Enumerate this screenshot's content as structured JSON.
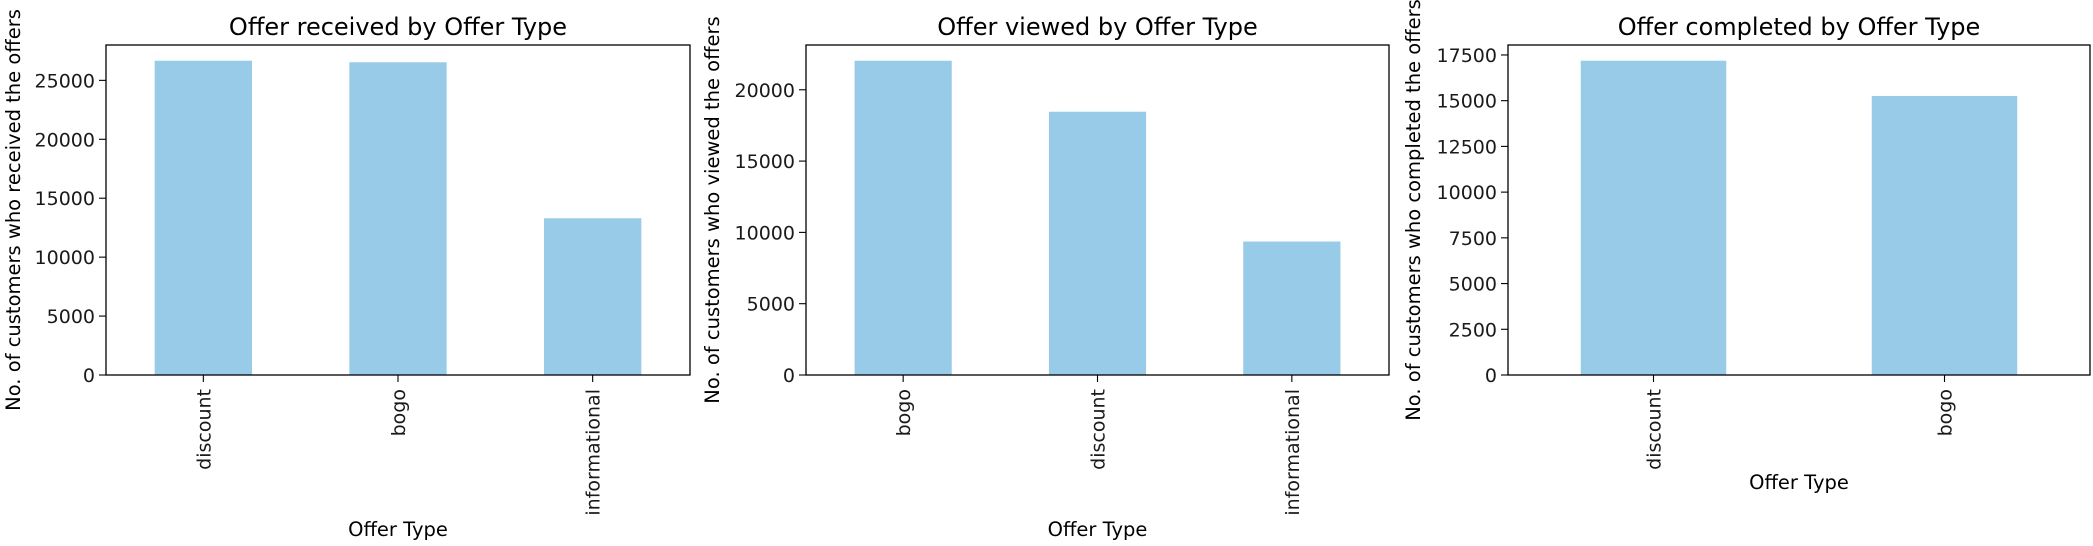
{
  "colors": {
    "bar": "#97cbe8"
  },
  "chart_data": [
    {
      "type": "bar",
      "title": "Offer received by Offer Type",
      "xlabel": "Offer Type",
      "ylabel": "No. of customers who received the offers",
      "categories": [
        "discount",
        "bogo",
        "informational"
      ],
      "values": [
        26664,
        26537,
        13300
      ],
      "ylim": [
        0,
        28000
      ],
      "yticks": [
        0,
        5000,
        10000,
        15000,
        20000,
        25000
      ],
      "ytick_labels": [
        "0",
        "5000",
        "10000",
        "15000",
        "20000",
        "25000"
      ],
      "grid": false,
      "legend": "none"
    },
    {
      "type": "bar",
      "title": "Offer viewed by Offer Type",
      "xlabel": "Offer Type",
      "ylabel": "No. of customers who viewed the offers",
      "categories": [
        "bogo",
        "discount",
        "informational"
      ],
      "values": [
        22039,
        18461,
        9360
      ],
      "ylim": [
        0,
        23140
      ],
      "yticks": [
        0,
        5000,
        10000,
        15000,
        20000
      ],
      "ytick_labels": [
        "0",
        "5000",
        "10000",
        "15000",
        "20000"
      ],
      "grid": false,
      "legend": "none"
    },
    {
      "type": "bar",
      "title": "Offer completed by Offer Type",
      "xlabel": "Offer Type",
      "ylabel": "No. of customers who completed the offers",
      "categories": [
        "discount",
        "bogo"
      ],
      "values": [
        17186,
        15258
      ],
      "ylim": [
        0,
        18045
      ],
      "yticks": [
        0,
        2500,
        5000,
        7500,
        10000,
        12500,
        15000,
        17500
      ],
      "ytick_labels": [
        "0",
        "2500",
        "5000",
        "7500",
        "10000",
        "12500",
        "15000",
        "17500"
      ],
      "grid": false,
      "legend": "none"
    }
  ]
}
